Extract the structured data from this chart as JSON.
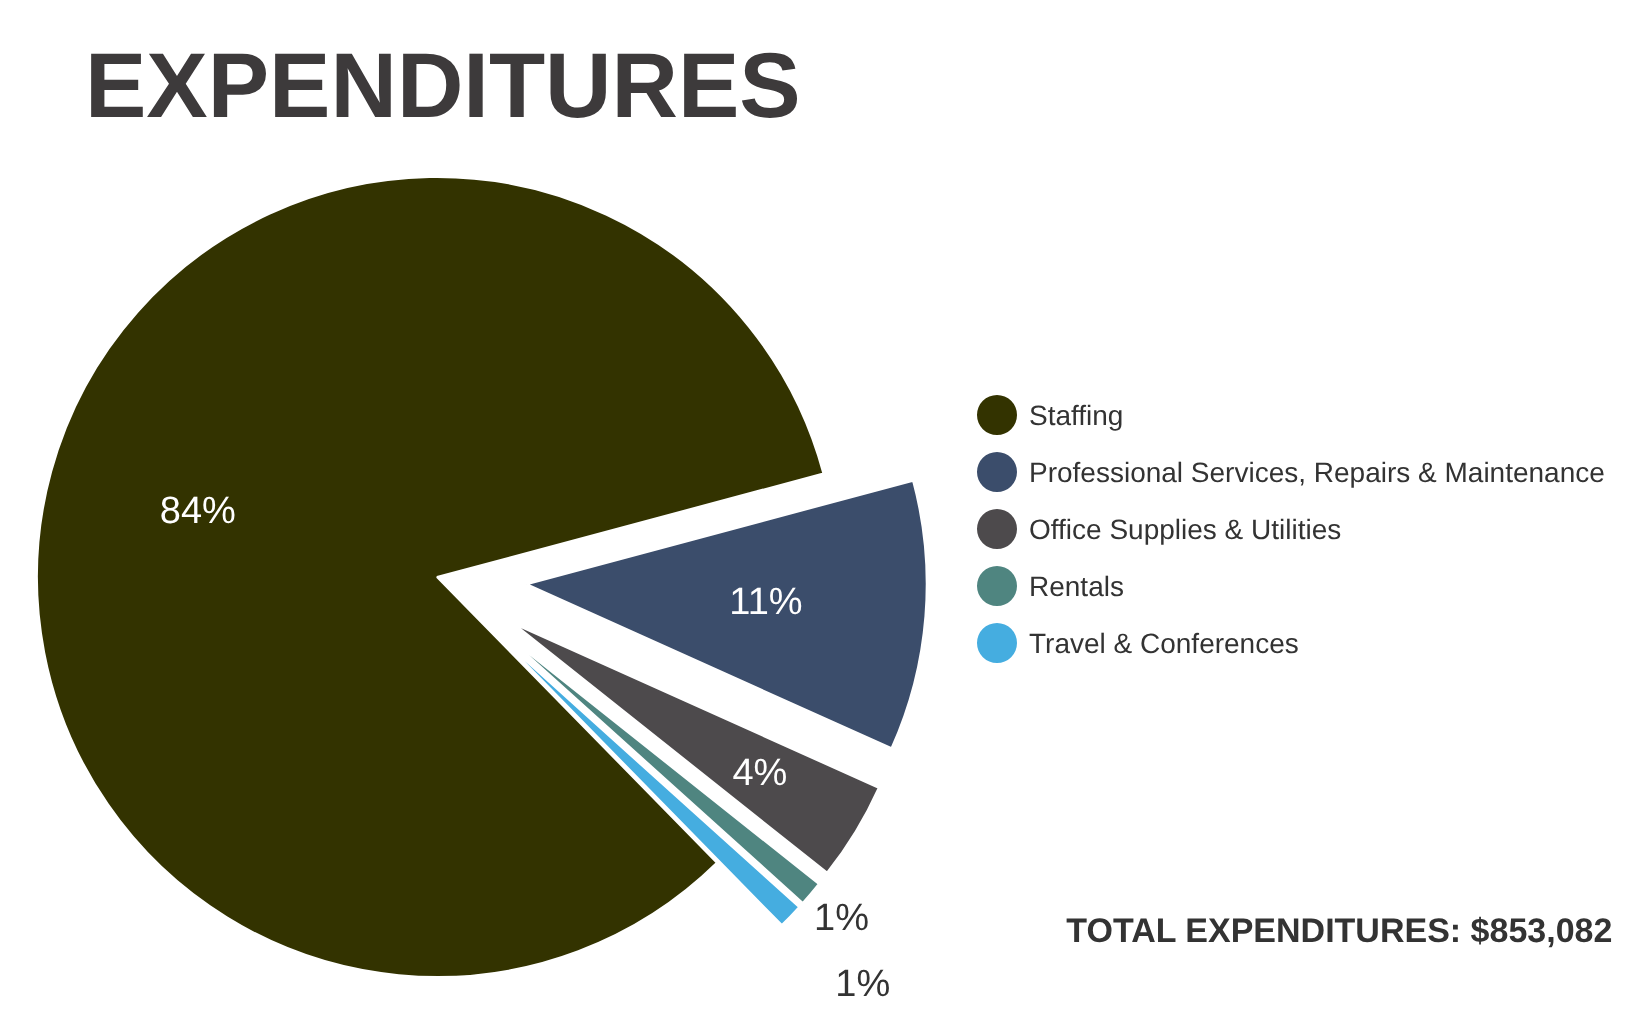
{
  "chart_data": {
    "type": "pie",
    "title": "EXPENDITURES",
    "categories": [
      "Staffing",
      "Professional Services, Repairs & Maintenance",
      "Office Supplies & Utilities",
      "Rentals",
      "Travel & Conferences"
    ],
    "values": [
      84,
      11,
      4,
      1,
      1
    ],
    "colors": [
      "#333300",
      "#3b4d6b",
      "#4d4a4c",
      "#4f8580",
      "#45ade0"
    ],
    "value_labels": [
      "84%",
      "11%",
      "4%",
      "1%",
      "1%"
    ],
    "legend": "right",
    "annotations": [
      "TOTAL EXPENDITURES: $853,082"
    ]
  }
}
